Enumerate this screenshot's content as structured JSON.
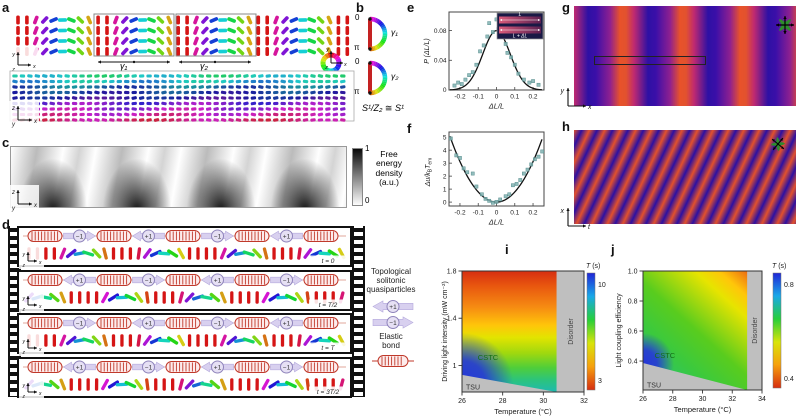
{
  "figure": {
    "panel_labels": {
      "a": "a",
      "b": "b",
      "c": "c",
      "d": "d",
      "e": "e",
      "f": "f",
      "g": "g",
      "h": "h",
      "i": "i",
      "j": "j"
    }
  },
  "panel_a": {
    "gamma1": "γ₁",
    "gamma2": "γ₂",
    "axes_top": {
      "up": "y",
      "right": "x",
      "depth": "z"
    },
    "axes_bottom": {
      "up": "z",
      "right": "x",
      "depth": "y"
    },
    "wheel_axes": {
      "up": "y",
      "right": "x",
      "depth": "z"
    },
    "top_grid": {
      "rows": 4,
      "cols": 38,
      "period": 9,
      "plateau": 0.12
    },
    "bottom_grid": {
      "rows": 9,
      "cols": 45
    }
  },
  "panel_b": {
    "zero": "0",
    "pi": "π",
    "gamma1": "γ₁",
    "gamma2": "γ₂",
    "caption": "S¹/Z₂ ≅ S¹"
  },
  "panel_c": {
    "colorbar_max": "1",
    "colorbar_min": "0",
    "colorbar_label": "Free\nenergy\ndensity\n(a.u.)",
    "axes": {
      "up": "z",
      "right": "x",
      "depth": "y"
    }
  },
  "panel_d": {
    "axes": {
      "up": "y",
      "right": "x",
      "depth": "z"
    },
    "rod_grid": {
      "cols": 38,
      "period": 9.5,
      "plateau": 0.34
    },
    "rows": [
      {
        "time": "t = 0",
        "charges": [
          "−1",
          "+1",
          "−1",
          "+1"
        ],
        "rod_offset": 0
      },
      {
        "time": "t = T/2",
        "charges": [
          "+1",
          "−1",
          "+1",
          "−1"
        ],
        "rod_offset": 4.75
      },
      {
        "time": "t = T",
        "charges": [
          "−1",
          "+1",
          "−1",
          "+1"
        ],
        "rod_offset": 0
      },
      {
        "time": "t = 3T/2",
        "charges": [
          "+1",
          "−1",
          "+1",
          "−1"
        ],
        "rod_offset": 4.75
      }
    ],
    "legend": {
      "title": "Topological\nsolitonic\nquasiparticles",
      "plus": "+1",
      "minus": "−1",
      "elastic": "Elastic\nbond"
    }
  },
  "panel_g": {
    "axes": {
      "up": "y",
      "right": "x"
    }
  },
  "panel_h": {
    "axes": {
      "up": "x",
      "right": "t"
    }
  },
  "chart_data": [
    {
      "id": "e",
      "type": "scatter",
      "xlabel": "ΔL/L",
      "ylabel": "P (ΔL/L)",
      "xlim": [
        -0.26,
        0.26
      ],
      "ylim": [
        0,
        0.105
      ],
      "xticks": [
        -0.2,
        -0.1,
        0,
        0.1,
        0.2
      ],
      "xtick_labels": [
        "-0.2",
        "-0.1",
        "0",
        "0.1",
        "0.2"
      ],
      "yticks": [
        0,
        0.04,
        0.08
      ],
      "ytick_labels": [
        "0",
        "0.04",
        "0.08"
      ],
      "curve": {
        "kind": "gaussian",
        "amplitude": 0.08,
        "sigma": 0.075,
        "mean": 0
      },
      "points": [
        [
          -0.23,
          0.006
        ],
        [
          -0.21,
          0.01
        ],
        [
          -0.19,
          0.008
        ],
        [
          -0.17,
          0.014
        ],
        [
          -0.15,
          0.02
        ],
        [
          -0.13,
          0.024
        ],
        [
          -0.11,
          0.034
        ],
        [
          -0.09,
          0.052
        ],
        [
          -0.07,
          0.06
        ],
        [
          -0.05,
          0.072
        ],
        [
          -0.04,
          0.09
        ],
        [
          -0.02,
          0.078
        ],
        [
          0,
          0.095
        ],
        [
          0.01,
          0.082
        ],
        [
          0.03,
          0.078
        ],
        [
          0.05,
          0.062
        ],
        [
          0.06,
          0.05
        ],
        [
          0.08,
          0.044
        ],
        [
          0.1,
          0.034
        ],
        [
          0.12,
          0.022
        ],
        [
          0.15,
          0.014
        ],
        [
          0.18,
          0.01
        ],
        [
          0.2,
          0.012
        ],
        [
          0.23,
          0.007
        ]
      ],
      "inset": {
        "top_label": "L",
        "bottom_label": "L + ΔL"
      }
    },
    {
      "id": "f",
      "type": "scatter",
      "xlabel": "ΔL/L",
      "ylabel_parts": [
        [
          "Δu/k",
          false
        ],
        [
          "B",
          true
        ],
        [
          "T",
          false
        ],
        [
          "em",
          true
        ]
      ],
      "xlim": [
        -0.26,
        0.26
      ],
      "ylim": [
        -0.3,
        5.4
      ],
      "xticks": [
        -0.2,
        -0.1,
        0,
        0.1,
        0.2
      ],
      "xtick_labels": [
        "-0.2",
        "-0.1",
        "0",
        "0.1",
        "0.2"
      ],
      "yticks": [
        0,
        1,
        2,
        3,
        4,
        5
      ],
      "ytick_labels": [
        "0",
        "1",
        "2",
        "3",
        "4",
        "5"
      ],
      "curve": {
        "kind": "parabola",
        "a": 78
      },
      "points": [
        [
          -0.25,
          4.9
        ],
        [
          -0.22,
          3.6
        ],
        [
          -0.2,
          3.4
        ],
        [
          -0.18,
          2.6
        ],
        [
          -0.16,
          2.3
        ],
        [
          -0.13,
          2.2
        ],
        [
          -0.11,
          1.2
        ],
        [
          -0.08,
          0.6
        ],
        [
          -0.06,
          0.25
        ],
        [
          -0.04,
          0.1
        ],
        [
          -0.02,
          -0.05
        ],
        [
          0,
          0.02
        ],
        [
          0.02,
          0.2
        ],
        [
          0.05,
          0.45
        ],
        [
          0.07,
          0.6
        ],
        [
          0.09,
          1.3
        ],
        [
          0.11,
          1.4
        ],
        [
          0.13,
          1.7
        ],
        [
          0.15,
          2.2
        ],
        [
          0.17,
          2.5
        ],
        [
          0.19,
          2.9
        ],
        [
          0.21,
          3.3
        ],
        [
          0.23,
          3.5
        ],
        [
          0.25,
          3.9
        ]
      ]
    },
    {
      "id": "i",
      "type": "heatmap",
      "xlabel": "Temperature (°C)",
      "ylabel": "Driving light intensity (mW cm⁻²)",
      "xlim": [
        26,
        32
      ],
      "xticks": [
        26,
        28,
        30,
        32
      ],
      "xtick_labels": [
        "26",
        "28",
        "30",
        "32"
      ],
      "ylim": [
        0.775,
        1.8
      ],
      "yticks": [
        1.8,
        1.4,
        1
      ],
      "ytick_labels": [
        "1.8",
        "1.4",
        "1"
      ],
      "colorbar": {
        "label": "T (s)",
        "top_tick": "10",
        "bottom_tick": "3"
      },
      "regions": {
        "cstc": "CSTC",
        "tsu": "TSU",
        "disorder": "Disorder"
      },
      "disorder_from_temp": 30.65,
      "tsu_boundary": {
        "left_value": 0.92
      }
    },
    {
      "id": "j",
      "type": "heatmap",
      "xlabel": "Temperature (°C)",
      "ylabel": "Light coupling efficiency",
      "xlim": [
        26,
        34
      ],
      "xticks": [
        26,
        28,
        30,
        32,
        34
      ],
      "xtick_labels": [
        "26",
        "28",
        "30",
        "32",
        "34"
      ],
      "ylim": [
        0.207,
        1.0
      ],
      "yticks": [
        1.0,
        0.8,
        0.6,
        0.4
      ],
      "ytick_labels": [
        "1.0",
        "0.8",
        "0.6",
        "0.4"
      ],
      "colorbar": {
        "label": "T (s)",
        "top_tick": "0.8",
        "bottom_tick": "0.4"
      },
      "regions": {
        "cstc": "CSTC",
        "tsu": "TSU",
        "disorder": "Disorder"
      },
      "disorder_from_temp": 33,
      "tsu_boundary": {
        "left_value": 0.387
      }
    }
  ],
  "colors": {
    "stripe_orange": "#e8512a",
    "stripe_blue": "#2c10a2",
    "stripe_magenta": "#b02384",
    "spring_red": "#c0392b",
    "quasiparticle_arrow": "#d8d0ef",
    "quasiparticle_circle": "#e6e0f4",
    "disorder_gray": "#bfbfbf",
    "cstc_green": "#157015",
    "scatter_teal": "#7fb2b2",
    "t_scale_top_to_bottom": [
      "#2026d6",
      "#19a8e8",
      "#27cf3a",
      "#d8e40a",
      "#f6a00d",
      "#d62e10"
    ]
  }
}
